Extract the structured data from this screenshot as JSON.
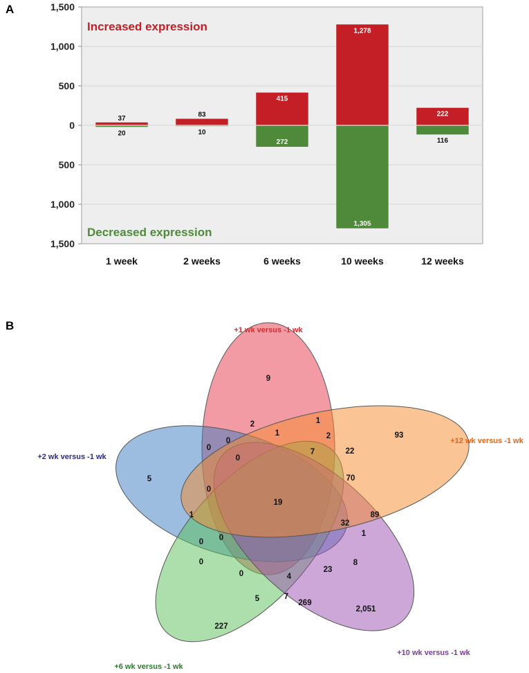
{
  "panels": {
    "a": "A",
    "b": "B"
  },
  "colors": {
    "increased": "#c41e26",
    "decreased": "#4f8a3a",
    "plot_bg": "#eeeeee",
    "set1": "#e8384a",
    "set2": "#3a7cbf",
    "set3": "#5ac05a",
    "set4": "#9a4fb0",
    "set5": "#f58a2c"
  },
  "chart_data": [
    {
      "type": "bar",
      "title": "",
      "xlabel": "",
      "ylabel": "",
      "categories": [
        "1 week",
        "2 weeks",
        "6 weeks",
        "10 weeks",
        "12 weeks"
      ],
      "series": [
        {
          "name": "Increased expression",
          "values": [
            37,
            83,
            415,
            1278,
            222
          ]
        },
        {
          "name": "Decreased expression",
          "values": [
            20,
            10,
            272,
            1305,
            116
          ]
        }
      ],
      "value_labels": {
        "increased": [
          "37",
          "83",
          "415",
          "1,278",
          "222"
        ],
        "decreased": [
          "20",
          "10",
          "272",
          "1,305",
          "116"
        ]
      },
      "ylim": [
        -1500,
        1500
      ],
      "yticks": [
        1500,
        1000,
        500,
        0,
        -500,
        -1000,
        -1500
      ],
      "ytick_labels": [
        "1,500",
        "1,000",
        "500",
        "0",
        "500",
        "1,000",
        "1,500"
      ],
      "annotations": {
        "up": "Increased expression",
        "down": "Decreased expression"
      }
    },
    {
      "type": "venn",
      "sets": [
        {
          "name": "+1 wk versus -1 wk",
          "color": "#e8384a",
          "label_color": "#d42c2c"
        },
        {
          "name": "+2 wk versus -1 wk",
          "color": "#3a7cbf",
          "label_color": "#2a2a8a"
        },
        {
          "name": "+6 wk versus -1 wk",
          "color": "#5ac05a",
          "label_color": "#2e7a2e"
        },
        {
          "name": "+10 wk versus -1 wk",
          "color": "#9a4fb0",
          "label_color": "#7a3a9a"
        },
        {
          "name": "+12 wk versus -1 wk",
          "color": "#f58a2c",
          "label_color": "#e0661a"
        }
      ],
      "region_values": [
        "9",
        "5",
        "227",
        "2,051",
        "93",
        "2",
        "1",
        "1",
        "2",
        "22",
        "0",
        "0",
        "0",
        "7",
        "70",
        "0",
        "1",
        "19",
        "32",
        "89",
        "0",
        "0",
        "1",
        "0",
        "8",
        "23",
        "4",
        "0",
        "5",
        "7",
        "269"
      ]
    }
  ]
}
